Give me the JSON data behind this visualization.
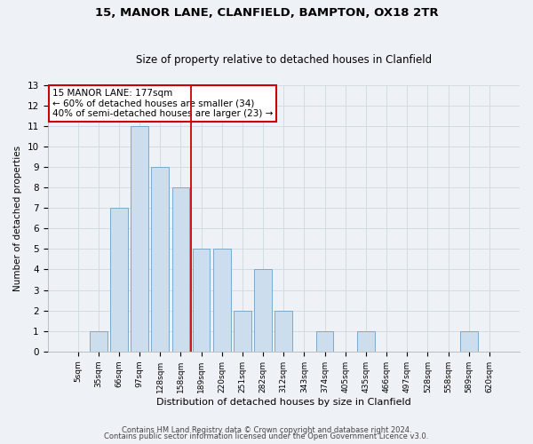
{
  "title1": "15, MANOR LANE, CLANFIELD, BAMPTON, OX18 2TR",
  "title2": "Size of property relative to detached houses in Clanfield",
  "xlabel": "Distribution of detached houses by size in Clanfield",
  "ylabel": "Number of detached properties",
  "categories": [
    "5sqm",
    "35sqm",
    "66sqm",
    "97sqm",
    "128sqm",
    "158sqm",
    "189sqm",
    "220sqm",
    "251sqm",
    "282sqm",
    "312sqm",
    "343sqm",
    "374sqm",
    "405sqm",
    "435sqm",
    "466sqm",
    "497sqm",
    "528sqm",
    "558sqm",
    "589sqm",
    "620sqm"
  ],
  "values": [
    0,
    1,
    7,
    11,
    9,
    8,
    5,
    5,
    2,
    4,
    2,
    0,
    1,
    0,
    1,
    0,
    0,
    0,
    0,
    1,
    0
  ],
  "bar_color": "#ccdded",
  "bar_edge_color": "#7aaac8",
  "reference_line_x": 5.5,
  "reference_line_color": "#cc0000",
  "annotation_text": "15 MANOR LANE: 177sqm\n← 60% of detached houses are smaller (34)\n40% of semi-detached houses are larger (23) →",
  "annotation_box_color": "white",
  "annotation_box_edge": "#cc0000",
  "ylim": [
    0,
    13
  ],
  "yticks": [
    0,
    1,
    2,
    3,
    4,
    5,
    6,
    7,
    8,
    9,
    10,
    11,
    12,
    13
  ],
  "footer1": "Contains HM Land Registry data © Crown copyright and database right 2024.",
  "footer2": "Contains public sector information licensed under the Open Government Licence v3.0.",
  "grid_color": "#d0d8e0",
  "bg_color": "#eef2f6",
  "title1_fontsize": 9.5,
  "title2_fontsize": 8.5,
  "xlabel_fontsize": 8,
  "ylabel_fontsize": 7.5,
  "tick_fontsize": 6.5,
  "ytick_fontsize": 7.5,
  "footer_fontsize": 6,
  "annot_fontsize": 7.5
}
